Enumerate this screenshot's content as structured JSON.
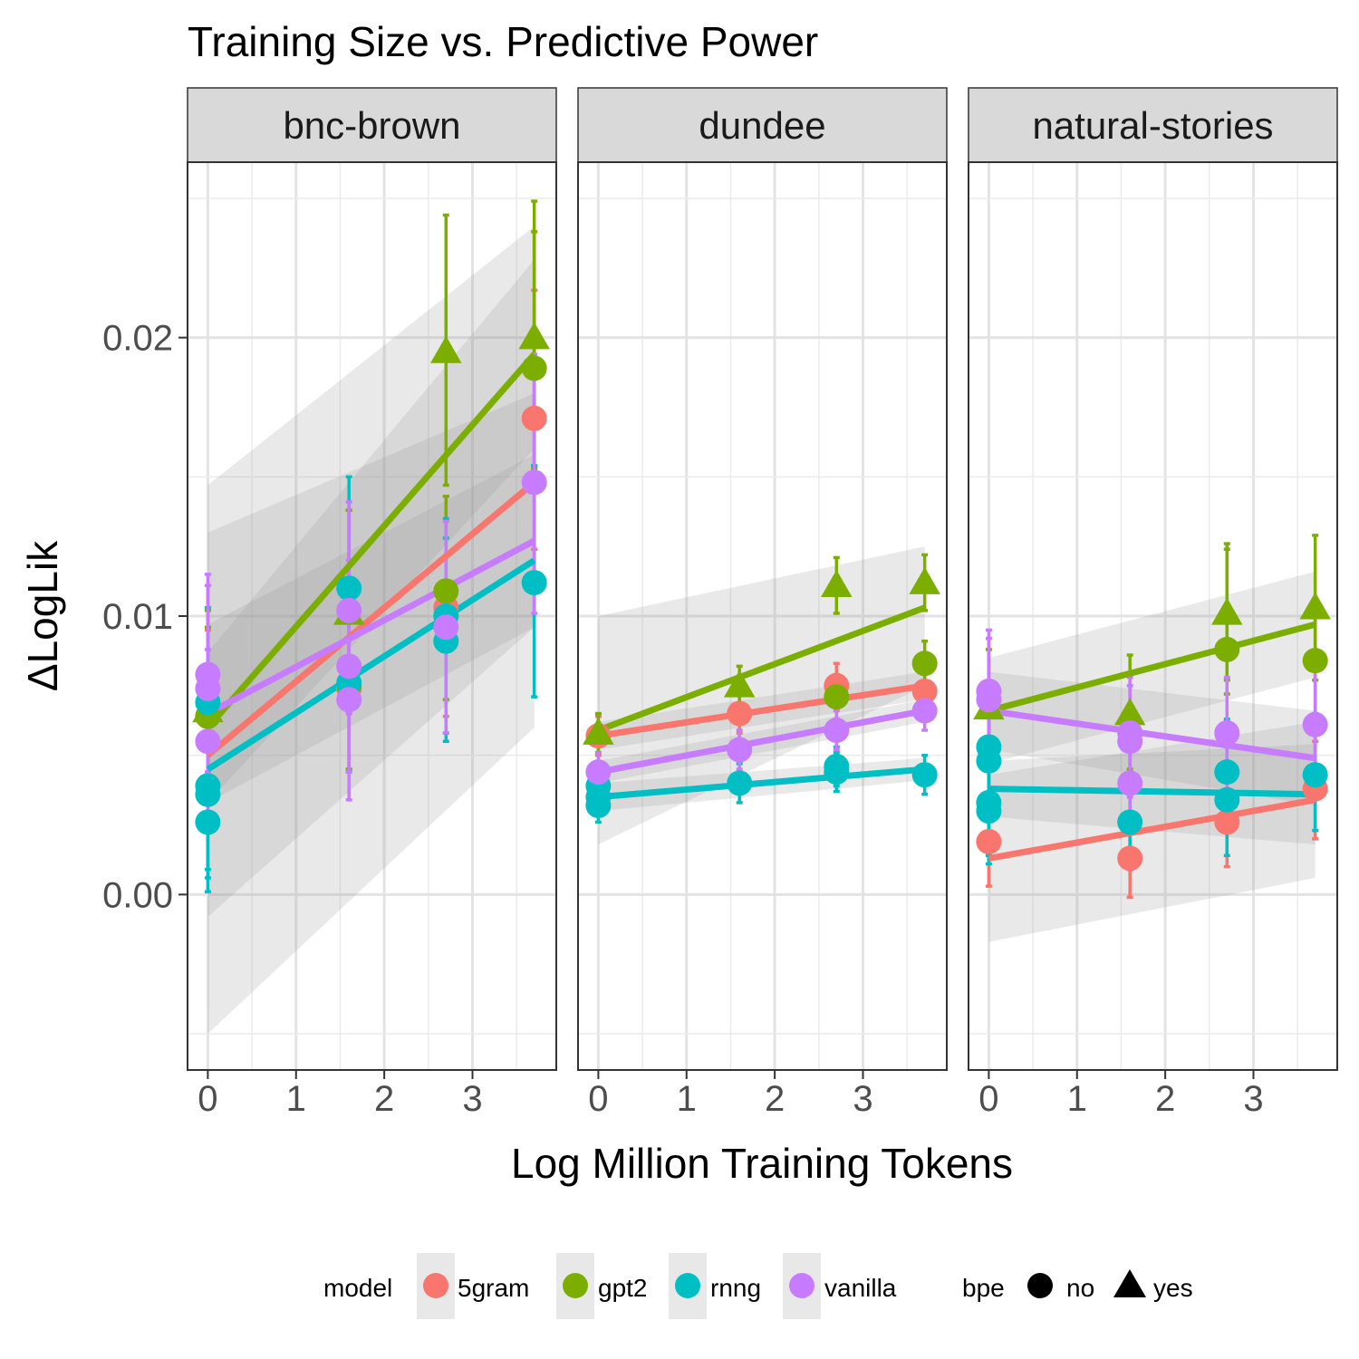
{
  "chart_data": {
    "type": "scatter",
    "title": "Training Size vs. Predictive Power",
    "xlabel": "Log Million Training Tokens",
    "ylabel": "ΔLogLik",
    "xlim": [
      -0.23,
      3.95
    ],
    "ylim": [
      -0.0063,
      0.0263
    ],
    "x_ticks": [
      0,
      1,
      2,
      3
    ],
    "x_tick_labels": [
      "0",
      "1",
      "2",
      "3"
    ],
    "y_ticks": [
      0.0,
      0.01,
      0.02
    ],
    "y_tick_labels": [
      "0.00",
      "0.01",
      "0.02"
    ],
    "grid": true,
    "legend_position": "bottom",
    "legend": {
      "model_title": "model",
      "models": [
        {
          "key": "5gram",
          "label": "5gram",
          "color": "#F8766D"
        },
        {
          "key": "gpt2",
          "label": "gpt2",
          "color": "#7CAE00"
        },
        {
          "key": "rnng",
          "label": "rnng",
          "color": "#00BFC4"
        },
        {
          "key": "vanilla",
          "label": "vanilla",
          "color": "#C77CFF"
        }
      ],
      "bpe_title": "bpe",
      "bpe": [
        {
          "key": "no",
          "label": "no",
          "shape": "circle"
        },
        {
          "key": "yes",
          "label": "yes",
          "shape": "triangle"
        }
      ]
    },
    "panels": [
      {
        "name": "bnc-brown",
        "points": [
          {
            "model": "5gram",
            "bpe": "no",
            "x": 0,
            "y": 0.0064,
            "lo": 0.0035,
            "hi": 0.0095
          },
          {
            "model": "5gram",
            "bpe": "no",
            "x": 1.6,
            "y": 0.0074,
            "lo": 0.0045,
            "hi": 0.0138
          },
          {
            "model": "5gram",
            "bpe": "no",
            "x": 2.7,
            "y": 0.0103,
            "lo": 0.0064,
            "hi": 0.0143
          },
          {
            "model": "5gram",
            "bpe": "no",
            "x": 3.7,
            "y": 0.0171,
            "lo": 0.0124,
            "hi": 0.0217
          },
          {
            "model": "gpt2",
            "bpe": "no",
            "x": 0,
            "y": 0.0064,
            "lo": 0.0035,
            "hi": 0.0102
          },
          {
            "model": "gpt2",
            "bpe": "no",
            "x": 1.6,
            "y": 0.0075,
            "lo": 0.0045,
            "hi": 0.0138
          },
          {
            "model": "gpt2",
            "bpe": "no",
            "x": 2.7,
            "y": 0.0109,
            "lo": 0.007,
            "hi": 0.0143
          },
          {
            "model": "gpt2",
            "bpe": "no",
            "x": 3.7,
            "y": 0.0189,
            "lo": 0.0153,
            "hi": 0.0238
          },
          {
            "model": "gpt2",
            "bpe": "yes",
            "x": 0,
            "y": 0.0066,
            "lo": 0.0036,
            "hi": 0.0096
          },
          {
            "model": "gpt2",
            "bpe": "yes",
            "x": 1.6,
            "y": 0.0101,
            "lo": 0.0065,
            "hi": 0.0138
          },
          {
            "model": "gpt2",
            "bpe": "yes",
            "x": 2.7,
            "y": 0.0195,
            "lo": 0.0147,
            "hi": 0.0244
          },
          {
            "model": "gpt2",
            "bpe": "yes",
            "x": 3.7,
            "y": 0.02,
            "lo": 0.0154,
            "hi": 0.0249
          },
          {
            "model": "rnng",
            "bpe": "no",
            "x": 0,
            "y": 0.0069,
            "lo": 0.004,
            "hi": 0.0103
          },
          {
            "model": "rnng",
            "bpe": "no",
            "x": 0,
            "y": 0.0039,
            "lo": 0.0009,
            "hi": 0.0069
          },
          {
            "model": "rnng",
            "bpe": "no",
            "x": 0,
            "y": 0.0036,
            "lo": 0.0006,
            "hi": 0.0066
          },
          {
            "model": "rnng",
            "bpe": "no",
            "x": 0,
            "y": 0.0026,
            "lo": 0.0001,
            "hi": 0.0055
          },
          {
            "model": "rnng",
            "bpe": "no",
            "x": 1.6,
            "y": 0.011,
            "lo": 0.0071,
            "hi": 0.015
          },
          {
            "model": "rnng",
            "bpe": "no",
            "x": 1.6,
            "y": 0.0076,
            "lo": 0.0044,
            "hi": 0.0111
          },
          {
            "model": "rnng",
            "bpe": "no",
            "x": 2.7,
            "y": 0.01,
            "lo": 0.0058,
            "hi": 0.0135
          },
          {
            "model": "rnng",
            "bpe": "no",
            "x": 2.7,
            "y": 0.0091,
            "lo": 0.0055,
            "hi": 0.0128
          },
          {
            "model": "rnng",
            "bpe": "no",
            "x": 3.7,
            "y": 0.0112,
            "lo": 0.0071,
            "hi": 0.0154
          },
          {
            "model": "vanilla",
            "bpe": "no",
            "x": 0,
            "y": 0.0079,
            "lo": 0.0044,
            "hi": 0.0115
          },
          {
            "model": "vanilla",
            "bpe": "no",
            "x": 0,
            "y": 0.0074,
            "lo": 0.004,
            "hi": 0.0111
          },
          {
            "model": "vanilla",
            "bpe": "no",
            "x": 0,
            "y": 0.0055,
            "lo": 0.0025,
            "hi": 0.0088
          },
          {
            "model": "vanilla",
            "bpe": "no",
            "x": 1.6,
            "y": 0.0102,
            "lo": 0.0065,
            "hi": 0.0141
          },
          {
            "model": "vanilla",
            "bpe": "no",
            "x": 1.6,
            "y": 0.0082,
            "lo": 0.0044,
            "hi": 0.012
          },
          {
            "model": "vanilla",
            "bpe": "no",
            "x": 1.6,
            "y": 0.007,
            "lo": 0.0034,
            "hi": 0.0106
          },
          {
            "model": "vanilla",
            "bpe": "no",
            "x": 2.7,
            "y": 0.0096,
            "lo": 0.0058,
            "hi": 0.0134
          },
          {
            "model": "vanilla",
            "bpe": "no",
            "x": 3.7,
            "y": 0.0148,
            "lo": 0.0101,
            "hi": 0.0194
          }
        ],
        "fits": [
          {
            "model": "gpt2",
            "x": [
              0,
              3.7
            ],
            "y": [
              0.006,
              0.0194
            ],
            "band_lo": [
              0.0033,
              0.016
            ],
            "band_hi": [
              0.0087,
              0.0228
            ]
          },
          {
            "model": "5gram",
            "x": [
              0,
              3.7
            ],
            "y": [
              0.005,
              0.0148
            ],
            "band_lo": [
              -0.0008,
              0.0096
            ],
            "band_hi": [
              0.0147,
              0.024
            ]
          },
          {
            "model": "vanilla",
            "x": [
              0,
              3.7
            ],
            "y": [
              0.0065,
              0.0127
            ],
            "band_lo": [
              0.0033,
              0.0096
            ],
            "band_hi": [
              0.0097,
              0.0158
            ]
          },
          {
            "model": "rnng",
            "x": [
              0,
              3.7
            ],
            "y": [
              0.0045,
              0.012
            ],
            "band_lo": [
              -0.005,
              0.006
            ],
            "band_hi": [
              0.013,
              0.018
            ]
          }
        ]
      },
      {
        "name": "dundee",
        "points": [
          {
            "model": "5gram",
            "bpe": "no",
            "x": 0,
            "y": 0.0057,
            "lo": 0.005,
            "hi": 0.0064
          },
          {
            "model": "5gram",
            "bpe": "no",
            "x": 1.6,
            "y": 0.0065,
            "lo": 0.0058,
            "hi": 0.0072
          },
          {
            "model": "5gram",
            "bpe": "no",
            "x": 2.7,
            "y": 0.0075,
            "lo": 0.0067,
            "hi": 0.0083
          },
          {
            "model": "5gram",
            "bpe": "no",
            "x": 3.7,
            "y": 0.0073,
            "lo": 0.0065,
            "hi": 0.008
          },
          {
            "model": "gpt2",
            "bpe": "no",
            "x": 2.7,
            "y": 0.0071,
            "lo": 0.0063,
            "hi": 0.0079
          },
          {
            "model": "gpt2",
            "bpe": "no",
            "x": 3.7,
            "y": 0.0083,
            "lo": 0.0075,
            "hi": 0.0091
          },
          {
            "model": "gpt2",
            "bpe": "yes",
            "x": 0,
            "y": 0.0058,
            "lo": 0.0051,
            "hi": 0.0065
          },
          {
            "model": "gpt2",
            "bpe": "yes",
            "x": 1.6,
            "y": 0.0075,
            "lo": 0.0068,
            "hi": 0.0082
          },
          {
            "model": "gpt2",
            "bpe": "yes",
            "x": 2.7,
            "y": 0.0111,
            "lo": 0.0101,
            "hi": 0.0121
          },
          {
            "model": "gpt2",
            "bpe": "yes",
            "x": 3.7,
            "y": 0.0112,
            "lo": 0.0102,
            "hi": 0.0122
          },
          {
            "model": "rnng",
            "bpe": "no",
            "x": 0,
            "y": 0.0039,
            "lo": 0.0033,
            "hi": 0.0045
          },
          {
            "model": "rnng",
            "bpe": "no",
            "x": 0,
            "y": 0.0035,
            "lo": 0.0029,
            "hi": 0.0041
          },
          {
            "model": "rnng",
            "bpe": "no",
            "x": 0,
            "y": 0.0032,
            "lo": 0.0026,
            "hi": 0.0038
          },
          {
            "model": "rnng",
            "bpe": "no",
            "x": 1.6,
            "y": 0.004,
            "lo": 0.0033,
            "hi": 0.0047
          },
          {
            "model": "rnng",
            "bpe": "no",
            "x": 2.7,
            "y": 0.0046,
            "lo": 0.0039,
            "hi": 0.0053
          },
          {
            "model": "rnng",
            "bpe": "no",
            "x": 2.7,
            "y": 0.0044,
            "lo": 0.0037,
            "hi": 0.0051
          },
          {
            "model": "rnng",
            "bpe": "no",
            "x": 3.7,
            "y": 0.0043,
            "lo": 0.0036,
            "hi": 0.005
          },
          {
            "model": "vanilla",
            "bpe": "no",
            "x": 0,
            "y": 0.0044,
            "lo": 0.0037,
            "hi": 0.0051
          },
          {
            "model": "vanilla",
            "bpe": "no",
            "x": 1.6,
            "y": 0.0052,
            "lo": 0.0045,
            "hi": 0.0059
          },
          {
            "model": "vanilla",
            "bpe": "no",
            "x": 2.7,
            "y": 0.0059,
            "lo": 0.0052,
            "hi": 0.0066
          },
          {
            "model": "vanilla",
            "bpe": "no",
            "x": 3.7,
            "y": 0.0066,
            "lo": 0.0059,
            "hi": 0.0073
          }
        ],
        "fits": [
          {
            "model": "gpt2",
            "x": [
              0,
              3.7
            ],
            "y": [
              0.0059,
              0.0103
            ],
            "band_lo": [
              0.0018,
              0.0075
            ],
            "band_hi": [
              0.01,
              0.0125
            ]
          },
          {
            "model": "5gram",
            "x": [
              0,
              3.7
            ],
            "y": [
              0.0057,
              0.0075
            ],
            "band_lo": [
              0.0052,
              0.007
            ],
            "band_hi": [
              0.0062,
              0.008
            ]
          },
          {
            "model": "vanilla",
            "x": [
              0,
              3.7
            ],
            "y": [
              0.0044,
              0.0066
            ],
            "band_lo": [
              0.004,
              0.0062
            ],
            "band_hi": [
              0.0048,
              0.007
            ]
          },
          {
            "model": "rnng",
            "x": [
              0,
              3.7
            ],
            "y": [
              0.0035,
              0.0045
            ],
            "band_lo": [
              0.003,
              0.0041
            ],
            "band_hi": [
              0.004,
              0.0049
            ]
          }
        ]
      },
      {
        "name": "natural-stories",
        "points": [
          {
            "model": "5gram",
            "bpe": "no",
            "x": 0,
            "y": 0.0019,
            "lo": 0.0003,
            "hi": 0.0035
          },
          {
            "model": "5gram",
            "bpe": "no",
            "x": 1.6,
            "y": 0.0013,
            "lo": -0.0001,
            "hi": 0.0027
          },
          {
            "model": "5gram",
            "bpe": "no",
            "x": 2.7,
            "y": 0.0026,
            "lo": 0.001,
            "hi": 0.0042
          },
          {
            "model": "5gram",
            "bpe": "no",
            "x": 3.7,
            "y": 0.0038,
            "lo": 0.002,
            "hi": 0.0055
          },
          {
            "model": "gpt2",
            "bpe": "no",
            "x": 2.7,
            "y": 0.0088,
            "lo": 0.0072,
            "hi": 0.0124
          },
          {
            "model": "gpt2",
            "bpe": "no",
            "x": 3.7,
            "y": 0.0084,
            "lo": 0.0065,
            "hi": 0.01
          },
          {
            "model": "gpt2",
            "bpe": "yes",
            "x": 0,
            "y": 0.0067,
            "lo": 0.0045,
            "hi": 0.0088
          },
          {
            "model": "gpt2",
            "bpe": "yes",
            "x": 1.6,
            "y": 0.0065,
            "lo": 0.0045,
            "hi": 0.0086
          },
          {
            "model": "gpt2",
            "bpe": "yes",
            "x": 2.7,
            "y": 0.0101,
            "lo": 0.0077,
            "hi": 0.0126
          },
          {
            "model": "gpt2",
            "bpe": "yes",
            "x": 3.7,
            "y": 0.0103,
            "lo": 0.0077,
            "hi": 0.0129
          },
          {
            "model": "rnng",
            "bpe": "no",
            "x": 0,
            "y": 0.0053,
            "lo": 0.0034,
            "hi": 0.0072
          },
          {
            "model": "rnng",
            "bpe": "no",
            "x": 0,
            "y": 0.0048,
            "lo": 0.0029,
            "hi": 0.0067
          },
          {
            "model": "rnng",
            "bpe": "no",
            "x": 0,
            "y": 0.0033,
            "lo": 0.0014,
            "hi": 0.0052
          },
          {
            "model": "rnng",
            "bpe": "no",
            "x": 0,
            "y": 0.003,
            "lo": 0.0011,
            "hi": 0.0049
          },
          {
            "model": "rnng",
            "bpe": "no",
            "x": 1.6,
            "y": 0.0026,
            "lo": 0.0009,
            "hi": 0.0043
          },
          {
            "model": "rnng",
            "bpe": "no",
            "x": 2.7,
            "y": 0.0044,
            "lo": 0.0024,
            "hi": 0.0063
          },
          {
            "model": "rnng",
            "bpe": "no",
            "x": 2.7,
            "y": 0.0034,
            "lo": 0.0014,
            "hi": 0.0053
          },
          {
            "model": "rnng",
            "bpe": "no",
            "x": 3.7,
            "y": 0.0043,
            "lo": 0.0023,
            "hi": 0.0063
          },
          {
            "model": "vanilla",
            "bpe": "no",
            "x": 0,
            "y": 0.0073,
            "lo": 0.0051,
            "hi": 0.0095
          },
          {
            "model": "vanilla",
            "bpe": "no",
            "x": 0,
            "y": 0.007,
            "lo": 0.0048,
            "hi": 0.0092
          },
          {
            "model": "vanilla",
            "bpe": "no",
            "x": 1.6,
            "y": 0.0058,
            "lo": 0.0038,
            "hi": 0.0078
          },
          {
            "model": "vanilla",
            "bpe": "no",
            "x": 1.6,
            "y": 0.0055,
            "lo": 0.0035,
            "hi": 0.0075
          },
          {
            "model": "vanilla",
            "bpe": "no",
            "x": 1.6,
            "y": 0.004,
            "lo": 0.0022,
            "hi": 0.0058
          },
          {
            "model": "vanilla",
            "bpe": "no",
            "x": 2.7,
            "y": 0.0058,
            "lo": 0.0038,
            "hi": 0.0078
          },
          {
            "model": "vanilla",
            "bpe": "no",
            "x": 3.7,
            "y": 0.0061,
            "lo": 0.004,
            "hi": 0.0082
          }
        ],
        "fits": [
          {
            "model": "gpt2",
            "x": [
              0,
              3.7
            ],
            "y": [
              0.0066,
              0.0097
            ],
            "band_lo": [
              0.0047,
              0.0078
            ],
            "band_hi": [
              0.0085,
              0.0116
            ]
          },
          {
            "model": "vanilla",
            "x": [
              0,
              3.7
            ],
            "y": [
              0.0066,
              0.0049
            ],
            "band_lo": [
              0.0052,
              0.0032
            ],
            "band_hi": [
              0.008,
              0.0066
            ]
          },
          {
            "model": "rnng",
            "x": [
              0,
              3.7
            ],
            "y": [
              0.0038,
              0.0036
            ],
            "band_lo": [
              0.0028,
              0.0018
            ],
            "band_hi": [
              0.0048,
              0.0054
            ]
          },
          {
            "model": "5gram",
            "x": [
              0,
              3.7
            ],
            "y": [
              0.0013,
              0.0034
            ],
            "band_lo": [
              -0.0017,
              0.0006
            ],
            "band_hi": [
              0.0043,
              0.0062
            ]
          }
        ]
      }
    ]
  }
}
